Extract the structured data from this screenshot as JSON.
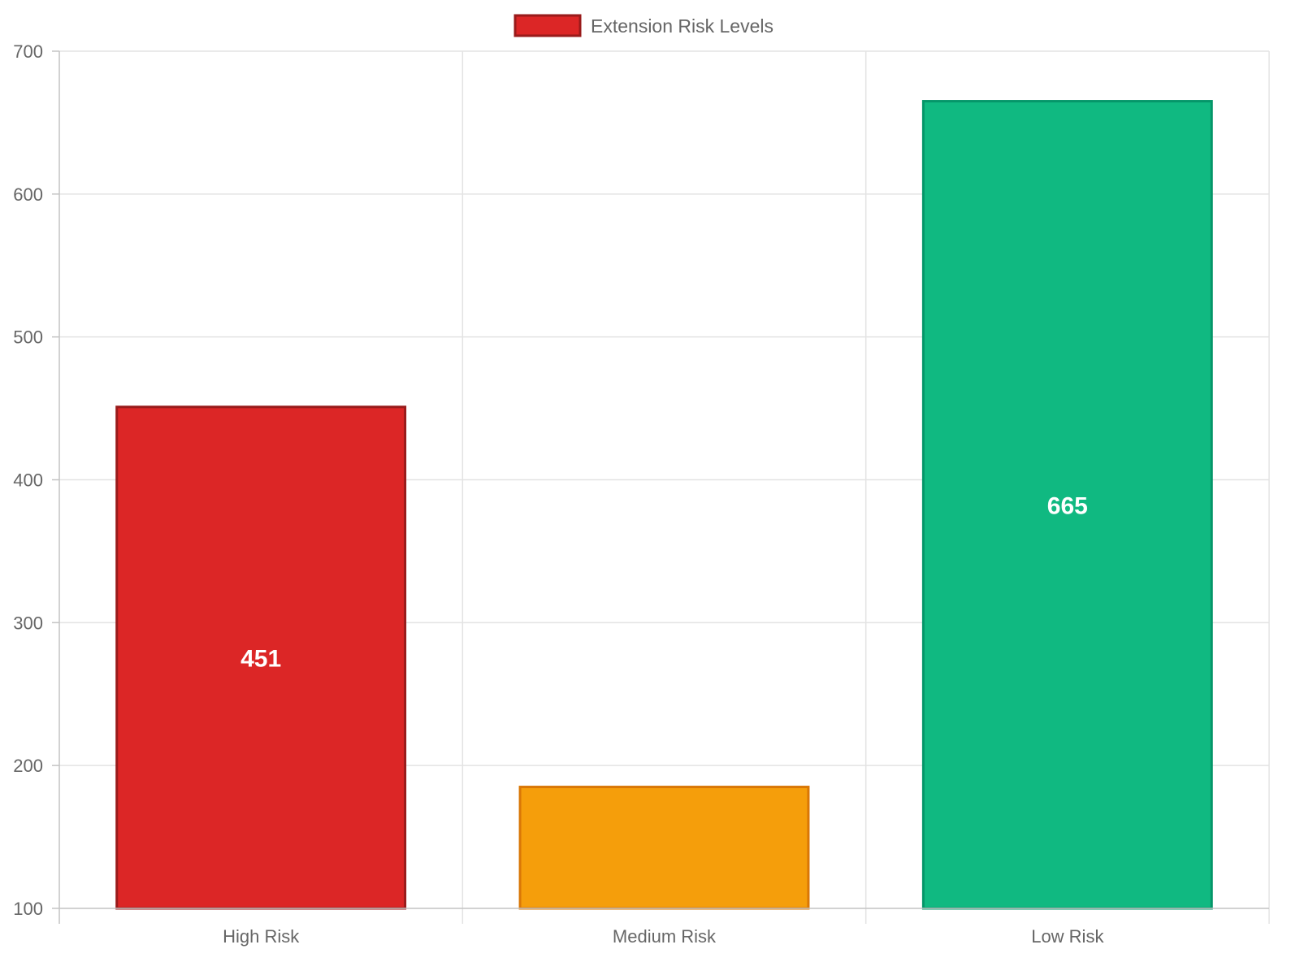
{
  "chart_data": {
    "type": "bar",
    "title": "",
    "xlabel": "",
    "ylabel": "",
    "categories": [
      "High Risk",
      "Medium Risk",
      "Low Risk"
    ],
    "series": [
      {
        "name": "Extension Risk Levels",
        "values": [
          451,
          185,
          665
        ],
        "colors": [
          "#dc2626",
          "#f59e0b",
          "#10b981"
        ],
        "border_colors": [
          "#991b1b",
          "#d97706",
          "#059669"
        ]
      }
    ],
    "data_labels": [
      "451",
      "",
      "665"
    ],
    "ylim": [
      100,
      700
    ],
    "yticks": [
      100,
      200,
      300,
      400,
      500,
      600,
      700
    ],
    "ytick_labels": [
      "100",
      "200",
      "300",
      "400",
      "500",
      "600",
      "700"
    ],
    "grid": true,
    "legend_position": "top-center",
    "legend_color": "#dc2626",
    "legend_border_color": "#991b1b"
  }
}
